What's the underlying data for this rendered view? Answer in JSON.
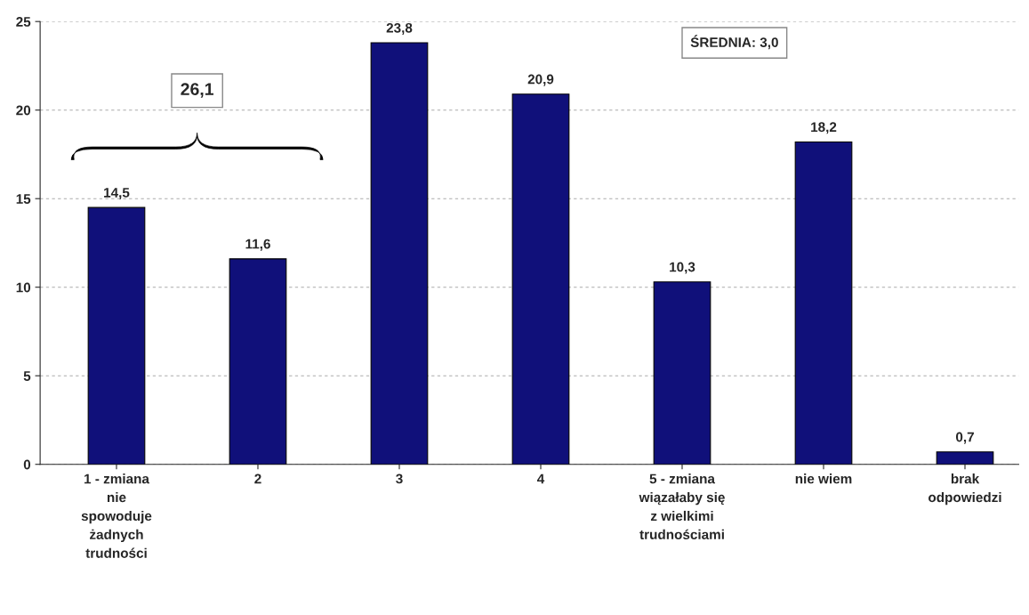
{
  "chart_data": {
    "type": "bar",
    "categories": [
      "1 - zmiana\nnie\nspowoduje\nżadnych\ntrudności",
      "2",
      "3",
      "4",
      "5 - zmiana\nwiązałaby się\nz wielkimi\ntrudnościami",
      "nie wiem",
      "brak\nodpowiedzi"
    ],
    "values": [
      14.5,
      11.6,
      23.8,
      20.9,
      10.3,
      18.2,
      0.7
    ],
    "value_labels": [
      "14,5",
      "11,6",
      "23,8",
      "20,9",
      "10,3",
      "18,2",
      "0,7"
    ],
    "color": "#10107a",
    "ylim": [
      0,
      25
    ],
    "yticks": [
      0,
      5,
      10,
      15,
      20,
      25
    ],
    "grid": "y",
    "annotations": [
      "26,1",
      "ŚREDNIA: 3,0"
    ]
  }
}
